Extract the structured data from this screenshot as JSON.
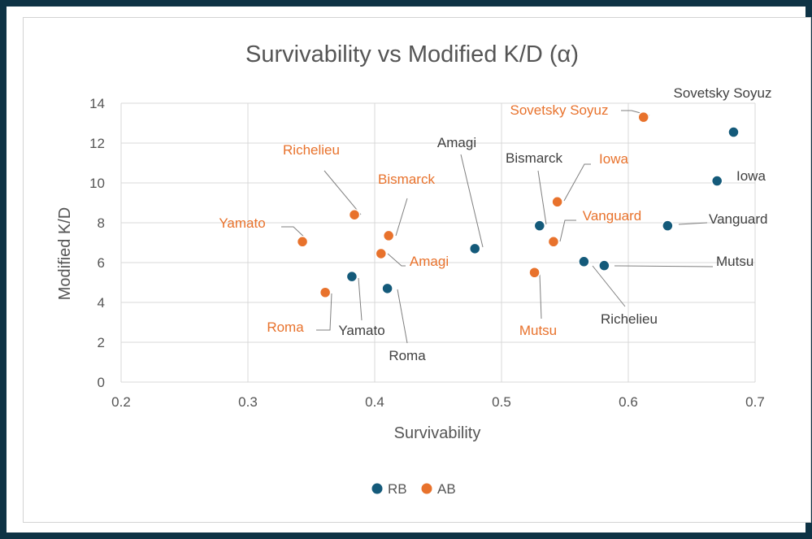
{
  "chart_data": {
    "type": "scatter",
    "title": "Survivability vs Modified K/D (α)",
    "xlabel": "Survivability",
    "ylabel": "Modified K/D",
    "xlim": [
      0.2,
      0.7
    ],
    "ylim": [
      0,
      14
    ],
    "xticks": [
      0.2,
      0.3,
      0.4,
      0.5,
      0.6,
      0.7
    ],
    "yticks": [
      0,
      2,
      4,
      6,
      8,
      10,
      12,
      14
    ],
    "grid": true,
    "legend": "bottom",
    "colors": {
      "RB": "#145a7a",
      "AB": "#e8722c"
    },
    "series": [
      {
        "name": "RB",
        "points": [
          {
            "label": "Sovetsky Soyuz",
            "x": 0.683,
            "y": 12.55
          },
          {
            "label": "Iowa",
            "x": 0.67,
            "y": 10.1
          },
          {
            "label": "Vanguard",
            "x": 0.631,
            "y": 7.85
          },
          {
            "label": "Mutsu",
            "x": 0.581,
            "y": 5.85
          },
          {
            "label": "Richelieu",
            "x": 0.565,
            "y": 6.05
          },
          {
            "label": "Bismarck",
            "x": 0.53,
            "y": 7.85
          },
          {
            "label": "Amagi",
            "x": 0.479,
            "y": 6.7
          },
          {
            "label": "Roma",
            "x": 0.41,
            "y": 4.7
          },
          {
            "label": "Yamato",
            "x": 0.382,
            "y": 5.3
          }
        ]
      },
      {
        "name": "AB",
        "points": [
          {
            "label": "Sovetsky Soyuz",
            "x": 0.612,
            "y": 13.3
          },
          {
            "label": "Iowa",
            "x": 0.544,
            "y": 9.05
          },
          {
            "label": "Vanguard",
            "x": 0.541,
            "y": 7.05
          },
          {
            "label": "Mutsu",
            "x": 0.526,
            "y": 5.5
          },
          {
            "label": "Bismarck",
            "x": 0.411,
            "y": 7.35
          },
          {
            "label": "Amagi",
            "x": 0.405,
            "y": 6.45
          },
          {
            "label": "Richelieu",
            "x": 0.384,
            "y": 8.4
          },
          {
            "label": "Roma",
            "x": 0.361,
            "y": 4.5
          },
          {
            "label": "Yamato",
            "x": 0.343,
            "y": 7.05
          }
        ]
      }
    ]
  }
}
